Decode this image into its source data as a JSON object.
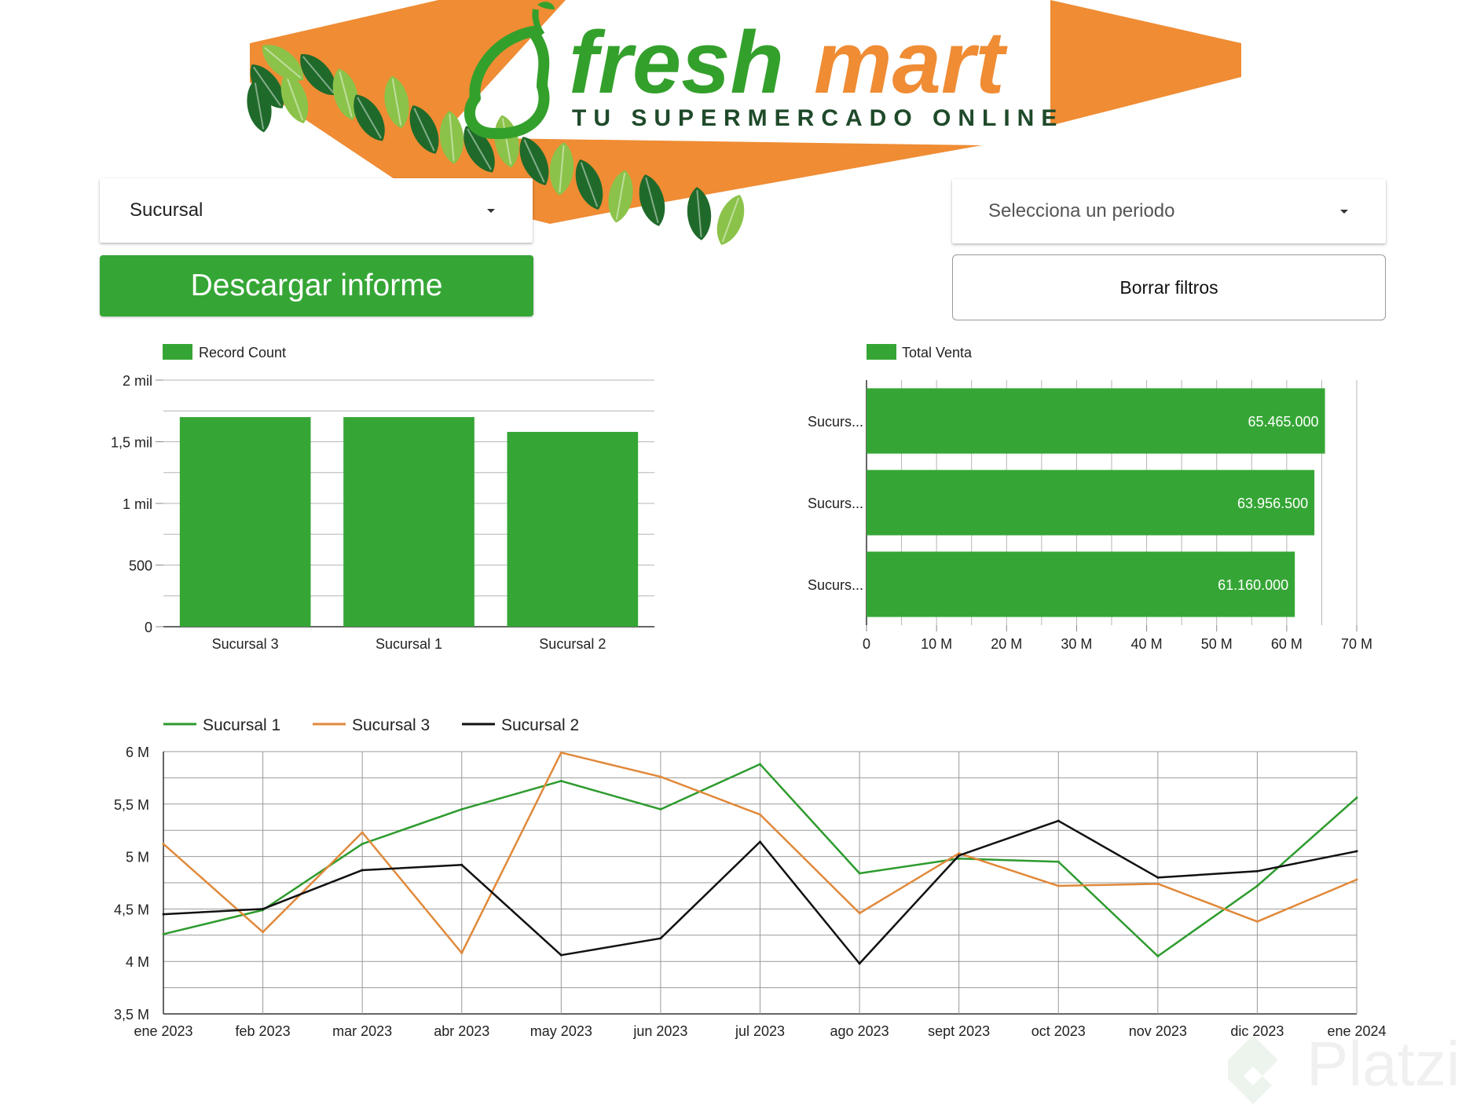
{
  "header": {
    "brand_fresh": "fresh",
    "brand_mart": "mart",
    "tagline": "TU SUPERMERCADO ONLINE",
    "colors": {
      "green": "#34a02c",
      "orange": "#ef8c34",
      "dark_green": "#1f6a2a"
    }
  },
  "filters": {
    "sucursal_label": "Sucursal",
    "periodo_label": "Selecciona un periodo"
  },
  "buttons": {
    "download_label": "Descargar informe",
    "clear_label": "Borrar filtros"
  },
  "accent_color": "#35a635",
  "chart_data": [
    {
      "type": "bar",
      "legend": "Record Count",
      "categories": [
        "Sucursal 3",
        "Sucursal 1",
        "Sucursal 2"
      ],
      "values": [
        1700,
        1700,
        1580
      ],
      "ylim": [
        0,
        2000
      ],
      "yticks": [
        {
          "value": 0,
          "label": "0"
        },
        {
          "value": 500,
          "label": "500"
        },
        {
          "value": 1000,
          "label": "1 mil"
        },
        {
          "value": 1500,
          "label": "1,5 mil"
        },
        {
          "value": 2000,
          "label": "2 mil"
        }
      ],
      "color": "#35a635"
    },
    {
      "type": "bar",
      "orientation": "horizontal",
      "legend": "Total Venta",
      "categories": [
        "Sucurs...",
        "Sucurs...",
        "Sucurs..."
      ],
      "values": [
        65465000,
        63956500,
        61160000
      ],
      "value_labels": [
        "65.465.000",
        "63.956.500",
        "61.160.000"
      ],
      "xlim": [
        0,
        70000000
      ],
      "xticks": [
        {
          "value": 0,
          "label": "0"
        },
        {
          "value": 10000000,
          "label": "10 M"
        },
        {
          "value": 20000000,
          "label": "20 M"
        },
        {
          "value": 30000000,
          "label": "30 M"
        },
        {
          "value": 40000000,
          "label": "40 M"
        },
        {
          "value": 50000000,
          "label": "50 M"
        },
        {
          "value": 60000000,
          "label": "60 M"
        },
        {
          "value": 70000000,
          "label": "70 M"
        }
      ],
      "color": "#35a635"
    },
    {
      "type": "line",
      "x": [
        "ene 2023",
        "feb 2023",
        "mar 2023",
        "abr 2023",
        "may 2023",
        "jun 2023",
        "jul 2023",
        "ago 2023",
        "sept 2023",
        "oct 2023",
        "nov 2023",
        "dic 2023",
        "ene 2024"
      ],
      "ylim": [
        3500000,
        6000000
      ],
      "yticks": [
        {
          "value": 3500000,
          "label": "3,5 M"
        },
        {
          "value": 4000000,
          "label": "4 M"
        },
        {
          "value": 4500000,
          "label": "4,5 M"
        },
        {
          "value": 5000000,
          "label": "5 M"
        },
        {
          "value": 5500000,
          "label": "5,5 M"
        },
        {
          "value": 6000000,
          "label": "6 M"
        }
      ],
      "series": [
        {
          "name": "Sucursal 1",
          "color": "#2e9b2e",
          "values": [
            4260000,
            4490000,
            5120000,
            5450000,
            5720000,
            5450000,
            5880000,
            4840000,
            4980000,
            4950000,
            4050000,
            4720000,
            5560000
          ]
        },
        {
          "name": "Sucursal 3",
          "color": "#e0893a",
          "values": [
            5120000,
            4280000,
            5230000,
            4080000,
            5990000,
            5760000,
            5400000,
            4460000,
            5030000,
            4720000,
            4740000,
            4380000,
            4780000
          ]
        },
        {
          "name": "Sucursal 2",
          "color": "#111111",
          "values": [
            4450000,
            4500000,
            4870000,
            4920000,
            4060000,
            4220000,
            5140000,
            3980000,
            5010000,
            5340000,
            4800000,
            4860000,
            5050000
          ]
        }
      ]
    }
  ],
  "watermark": {
    "text": "Platzi"
  }
}
